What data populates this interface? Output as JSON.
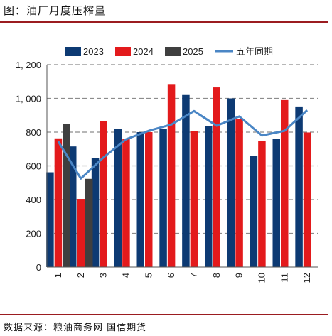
{
  "figure": {
    "title": "图：油厂月度压榨量",
    "source": "数据来源：粮油商务网 国信期货"
  },
  "chart_data": {
    "type": "bar",
    "categories": [
      "1",
      "2",
      "3",
      "4",
      "5",
      "6",
      "7",
      "8",
      "9",
      "10",
      "11",
      "12"
    ],
    "series": [
      {
        "name": "2023",
        "type": "bar",
        "color": "#0d3a73",
        "values": [
          562,
          715,
          645,
          820,
          800,
          820,
          1020,
          835,
          1000,
          658,
          758,
          952
        ]
      },
      {
        "name": "2024",
        "type": "bar",
        "color": "#e31a1c",
        "values": [
          763,
          404,
          866,
          760,
          800,
          1085,
          805,
          1065,
          880,
          748,
          990,
          798
        ]
      },
      {
        "name": "2025",
        "type": "bar",
        "color": "#3f3f3f",
        "values": [
          848,
          523,
          null,
          null,
          null,
          null,
          null,
          null,
          null,
          null,
          null,
          null
        ]
      },
      {
        "name": "五年同期",
        "type": "line",
        "color": "#4a86c5",
        "values": [
          745,
          525,
          650,
          758,
          808,
          845,
          925,
          838,
          893,
          780,
          808,
          930
        ]
      }
    ],
    "y_ticks": [
      "0",
      "200",
      "400",
      "600",
      "800",
      "1, 000",
      "1, 200"
    ],
    "ylim": [
      0,
      1200
    ],
    "grid": "horizontal dashed",
    "legend": "top",
    "title": "",
    "xlabel": "",
    "ylabel": ""
  }
}
